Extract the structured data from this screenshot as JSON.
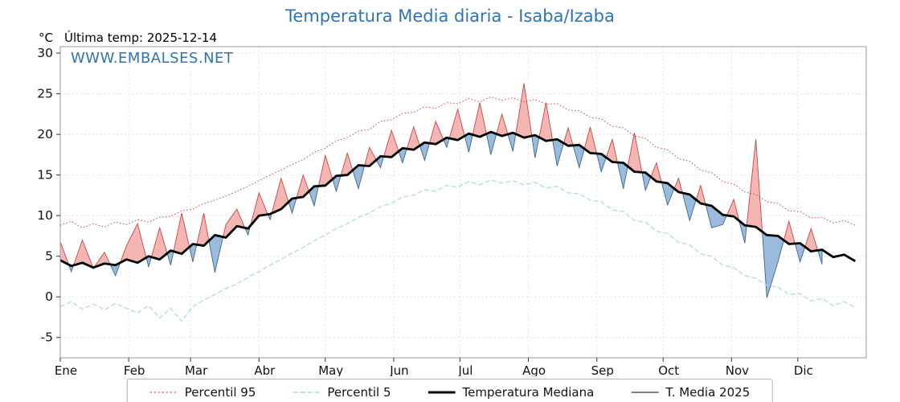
{
  "title": "Temperatura Media diaria - Isaba/Izaba",
  "header": {
    "unit": "°C",
    "last_temp": "Última temp: 2025-12-14"
  },
  "watermark": "WWW.EMBALSES.NET",
  "colors": {
    "title": "#2e74b5",
    "watermark": "#2e74b5",
    "grid": "#dfe3e8",
    "axis_box": "#999999",
    "tick": "#333333",
    "tick_label": "#111111"
  },
  "chart_data": {
    "type": "line",
    "title": "Temperatura Media diaria - Isaba/Izaba",
    "xlabel": "",
    "ylabel": "°C",
    "x_unit": "day_of_year",
    "x_step_days": 5,
    "x_max_days": 365,
    "ylim": [
      -7.5,
      30.8
    ],
    "yticks": [
      -5,
      0,
      5,
      10,
      15,
      20,
      25,
      30
    ],
    "months": [
      "Ene",
      "Feb",
      "Mar",
      "Abr",
      "May",
      "Jun",
      "Jul",
      "Ago",
      "Sep",
      "Oct",
      "Nov",
      "Dic"
    ],
    "month_start_days": [
      0,
      31,
      59,
      90,
      120,
      151,
      181,
      212,
      243,
      273,
      304,
      334
    ],
    "grid": true,
    "legend_position": "bottom",
    "last_observation": "2025-12-14",
    "series": [
      {
        "name": "Percentil 95",
        "style": "dotted",
        "color": "#dd4444",
        "values": [
          8.8,
          9.3,
          8.5,
          9.0,
          8.6,
          9.2,
          8.9,
          9.5,
          9.2,
          9.8,
          9.9,
          10.6,
          10.8,
          11.5,
          11.9,
          12.4,
          13.0,
          13.6,
          14.3,
          15.0,
          15.6,
          16.3,
          16.9,
          17.8,
          18.3,
          19.2,
          19.6,
          20.4,
          20.6,
          21.6,
          21.8,
          22.6,
          22.7,
          23.4,
          23.2,
          23.9,
          23.8,
          24.4,
          24.0,
          24.6,
          24.2,
          24.5,
          24.0,
          24.3,
          23.7,
          23.8,
          23.0,
          22.9,
          22.1,
          21.9,
          21.0,
          20.8,
          19.8,
          19.5,
          18.4,
          18.1,
          17.0,
          16.7,
          15.6,
          15.3,
          14.2,
          13.9,
          12.9,
          12.6,
          11.7,
          11.5,
          10.6,
          10.5,
          9.7,
          9.8,
          9.1,
          9.4,
          8.8
        ]
      },
      {
        "name": "Percentil 5",
        "style": "dashed",
        "color": "#a8d8ea",
        "values": [
          -1.2,
          -0.6,
          -1.5,
          -0.9,
          -1.6,
          -0.8,
          -1.4,
          -2.0,
          -1.1,
          -2.6,
          -1.4,
          -3.0,
          -1.2,
          -0.4,
          0.3,
          1.0,
          1.6,
          2.4,
          3.1,
          3.9,
          4.6,
          5.4,
          6.1,
          6.9,
          7.6,
          8.4,
          9.0,
          9.8,
          10.3,
          11.1,
          11.5,
          12.3,
          12.5,
          13.2,
          13.0,
          13.7,
          13.5,
          14.2,
          13.8,
          14.4,
          14.0,
          14.3,
          13.8,
          14.1,
          13.4,
          13.6,
          12.8,
          12.7,
          11.9,
          11.7,
          10.7,
          10.5,
          9.4,
          9.2,
          8.1,
          7.8,
          6.7,
          6.4,
          5.3,
          5.0,
          3.9,
          3.6,
          2.6,
          2.3,
          1.4,
          1.2,
          0.3,
          0.4,
          -0.5,
          -0.2,
          -1.1,
          -0.6,
          -1.3
        ]
      },
      {
        "name": "Temperatura Mediana",
        "style": "solid-thick",
        "color": "#000000",
        "values": [
          4.5,
          3.8,
          4.2,
          3.6,
          4.1,
          3.9,
          4.6,
          4.2,
          5.0,
          4.6,
          5.7,
          5.3,
          6.5,
          6.3,
          7.6,
          7.3,
          8.7,
          8.4,
          10.0,
          10.2,
          10.8,
          12.1,
          12.3,
          13.6,
          13.7,
          14.9,
          15.0,
          16.2,
          16.1,
          17.3,
          17.2,
          18.3,
          18.1,
          19.0,
          18.8,
          19.6,
          19.3,
          20.1,
          19.7,
          20.3,
          19.8,
          20.2,
          19.6,
          19.9,
          19.2,
          19.4,
          18.6,
          18.7,
          17.7,
          17.6,
          16.6,
          16.5,
          15.4,
          15.3,
          14.2,
          14.0,
          12.9,
          12.6,
          11.5,
          11.2,
          10.1,
          9.9,
          8.8,
          8.6,
          7.6,
          7.5,
          6.5,
          6.6,
          5.6,
          5.8,
          4.9,
          5.2,
          4.4
        ]
      },
      {
        "name": "T. Media 2025",
        "style": "solid-thin",
        "color": "#333333",
        "values": [
          6.8,
          3.1,
          7.0,
          3.5,
          5.5,
          2.6,
          6.3,
          9.0,
          3.7,
          8.5,
          3.9,
          10.3,
          4.3,
          10.3,
          3.0,
          8.9,
          10.8,
          7.6,
          12.8,
          9.5,
          14.6,
          10.3,
          15.0,
          11.2,
          17.4,
          13.0,
          17.7,
          13.3,
          18.4,
          15.9,
          20.5,
          16.5,
          20.9,
          16.8,
          21.6,
          18.4,
          23.1,
          17.8,
          23.9,
          17.5,
          22.5,
          17.9,
          26.3,
          17.1,
          23.9,
          16.1,
          20.8,
          15.9,
          20.9,
          15.4,
          19.4,
          13.3,
          20.2,
          13.1,
          16.5,
          11.3,
          14.6,
          9.4,
          13.7,
          8.5,
          8.9,
          12.0,
          6.6,
          19.4,
          -0.1,
          4.3,
          9.3,
          4.3,
          8.4,
          4.0,
          null,
          null,
          null
        ]
      }
    ],
    "fills": {
      "above_color": "#f4b6b2",
      "above_edge": "#cc4444",
      "below_color": "#9abbdb",
      "below_edge": "#3c6690",
      "description": "area between T. Media 2025 and Temperatura Mediana: red when 2025 above median, blue when below"
    }
  }
}
